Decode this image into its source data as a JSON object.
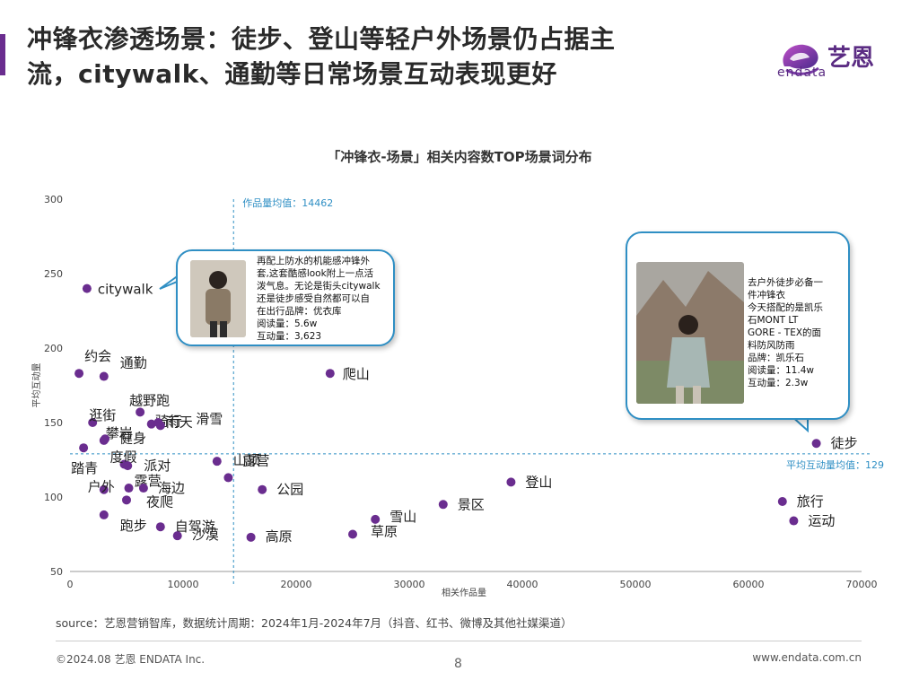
{
  "header": {
    "title_line1": "冲锋衣渗透场景：徒步、登山等轻户外场景仍占据主",
    "title_line2": "流，citywalk、通勤等日常场景互动表现更好",
    "logo_text": "艺恩",
    "logo_sub": "endata"
  },
  "chart_data": {
    "type": "scatter",
    "title": "「冲锋衣-场景」相关内容数TOP场景词分布",
    "xlabel": "相关作品量",
    "ylabel": "平均互动量",
    "xlim": [
      0,
      70000
    ],
    "ylim": [
      50,
      300
    ],
    "xticks": [
      0,
      10000,
      20000,
      30000,
      40000,
      50000,
      60000,
      70000
    ],
    "yticks": [
      50,
      100,
      150,
      200,
      250,
      300
    ],
    "grid": false,
    "reference_lines": {
      "x_mean": 14462,
      "x_mean_label": "作品量均值：14462",
      "y_mean": 129,
      "y_mean_label": "平均互动量均值：129"
    },
    "points": [
      {
        "label": "citywalk",
        "x": 1500,
        "y": 240
      },
      {
        "label": "约会",
        "x": 800,
        "y": 183
      },
      {
        "label": "通勤",
        "x": 3000,
        "y": 181
      },
      {
        "label": "爬山",
        "x": 23000,
        "y": 183
      },
      {
        "label": "越野跑",
        "x": 6200,
        "y": 157
      },
      {
        "label": "逛街",
        "x": 2000,
        "y": 150
      },
      {
        "label": "攀岩",
        "x": 3000,
        "y": 138
      },
      {
        "label": "骑行",
        "x": 7200,
        "y": 149
      },
      {
        "label": "滑雪",
        "x": 7800,
        "y": 150
      },
      {
        "label": "雨天",
        "x": 8000,
        "y": 148
      },
      {
        "label": "健身",
        "x": 3100,
        "y": 139
      },
      {
        "label": "踏青",
        "x": 1200,
        "y": 133
      },
      {
        "label": "度假",
        "x": 4800,
        "y": 122
      },
      {
        "label": "派对",
        "x": 5100,
        "y": 121
      },
      {
        "label": "山顶",
        "x": 13000,
        "y": 124
      },
      {
        "label": "露营",
        "x": 14000,
        "y": 113
      },
      {
        "label": "户外",
        "x": 3000,
        "y": 105
      },
      {
        "label": "露营",
        "x": 5200,
        "y": 106
      },
      {
        "label": "海边",
        "x": 6500,
        "y": 106
      },
      {
        "label": "夜爬",
        "x": 5000,
        "y": 98
      },
      {
        "label": "公园",
        "x": 17000,
        "y": 105
      },
      {
        "label": "跑步",
        "x": 3000,
        "y": 88
      },
      {
        "label": "自驾游",
        "x": 8000,
        "y": 80
      },
      {
        "label": "沙漠",
        "x": 9500,
        "y": 74
      },
      {
        "label": "高原",
        "x": 16000,
        "y": 73
      },
      {
        "label": "雪山",
        "x": 27000,
        "y": 85
      },
      {
        "label": "草原",
        "x": 25000,
        "y": 75
      },
      {
        "label": "景区",
        "x": 33000,
        "y": 95
      },
      {
        "label": "登山",
        "x": 39000,
        "y": 110
      },
      {
        "label": "徒步",
        "x": 66000,
        "y": 136
      },
      {
        "label": "旅行",
        "x": 63000,
        "y": 97
      },
      {
        "label": "运动",
        "x": 64000,
        "y": 84
      }
    ]
  },
  "callouts": [
    {
      "lines": [
        "再配上防水的机能感冲锋外",
        "套,这套酷感look附上一点活",
        "泼气息。无论是街头citywalk",
        "还是徒步感受自然都可以自",
        "在出行品牌：优衣库",
        "阅读量：5.6w",
        "互动量：3,623"
      ]
    },
    {
      "lines": [
        "去户外徒步必备一",
        "件冲锋衣",
        "今天搭配的是凯乐",
        "石MONT LT",
        "GORE - TEX的面",
        "料防风防雨",
        "品牌：凯乐石",
        "阅读量：11.4w",
        "互动量：2.3w"
      ]
    }
  ],
  "colors": {
    "point": "#6a2d8f",
    "reference_line": "#2f8fc4",
    "axis": "#999999",
    "bubble_border": "#2f8fc4"
  },
  "footer": {
    "source": "source：艺恩营销智库，数据统计周期：2024年1月-2024年7月（抖音、红书、微博及其他社媒渠道）",
    "copyright": "©2024.08  艺恩  ENDATA Inc.",
    "page": "8",
    "website": "www.endata.com.cn"
  }
}
